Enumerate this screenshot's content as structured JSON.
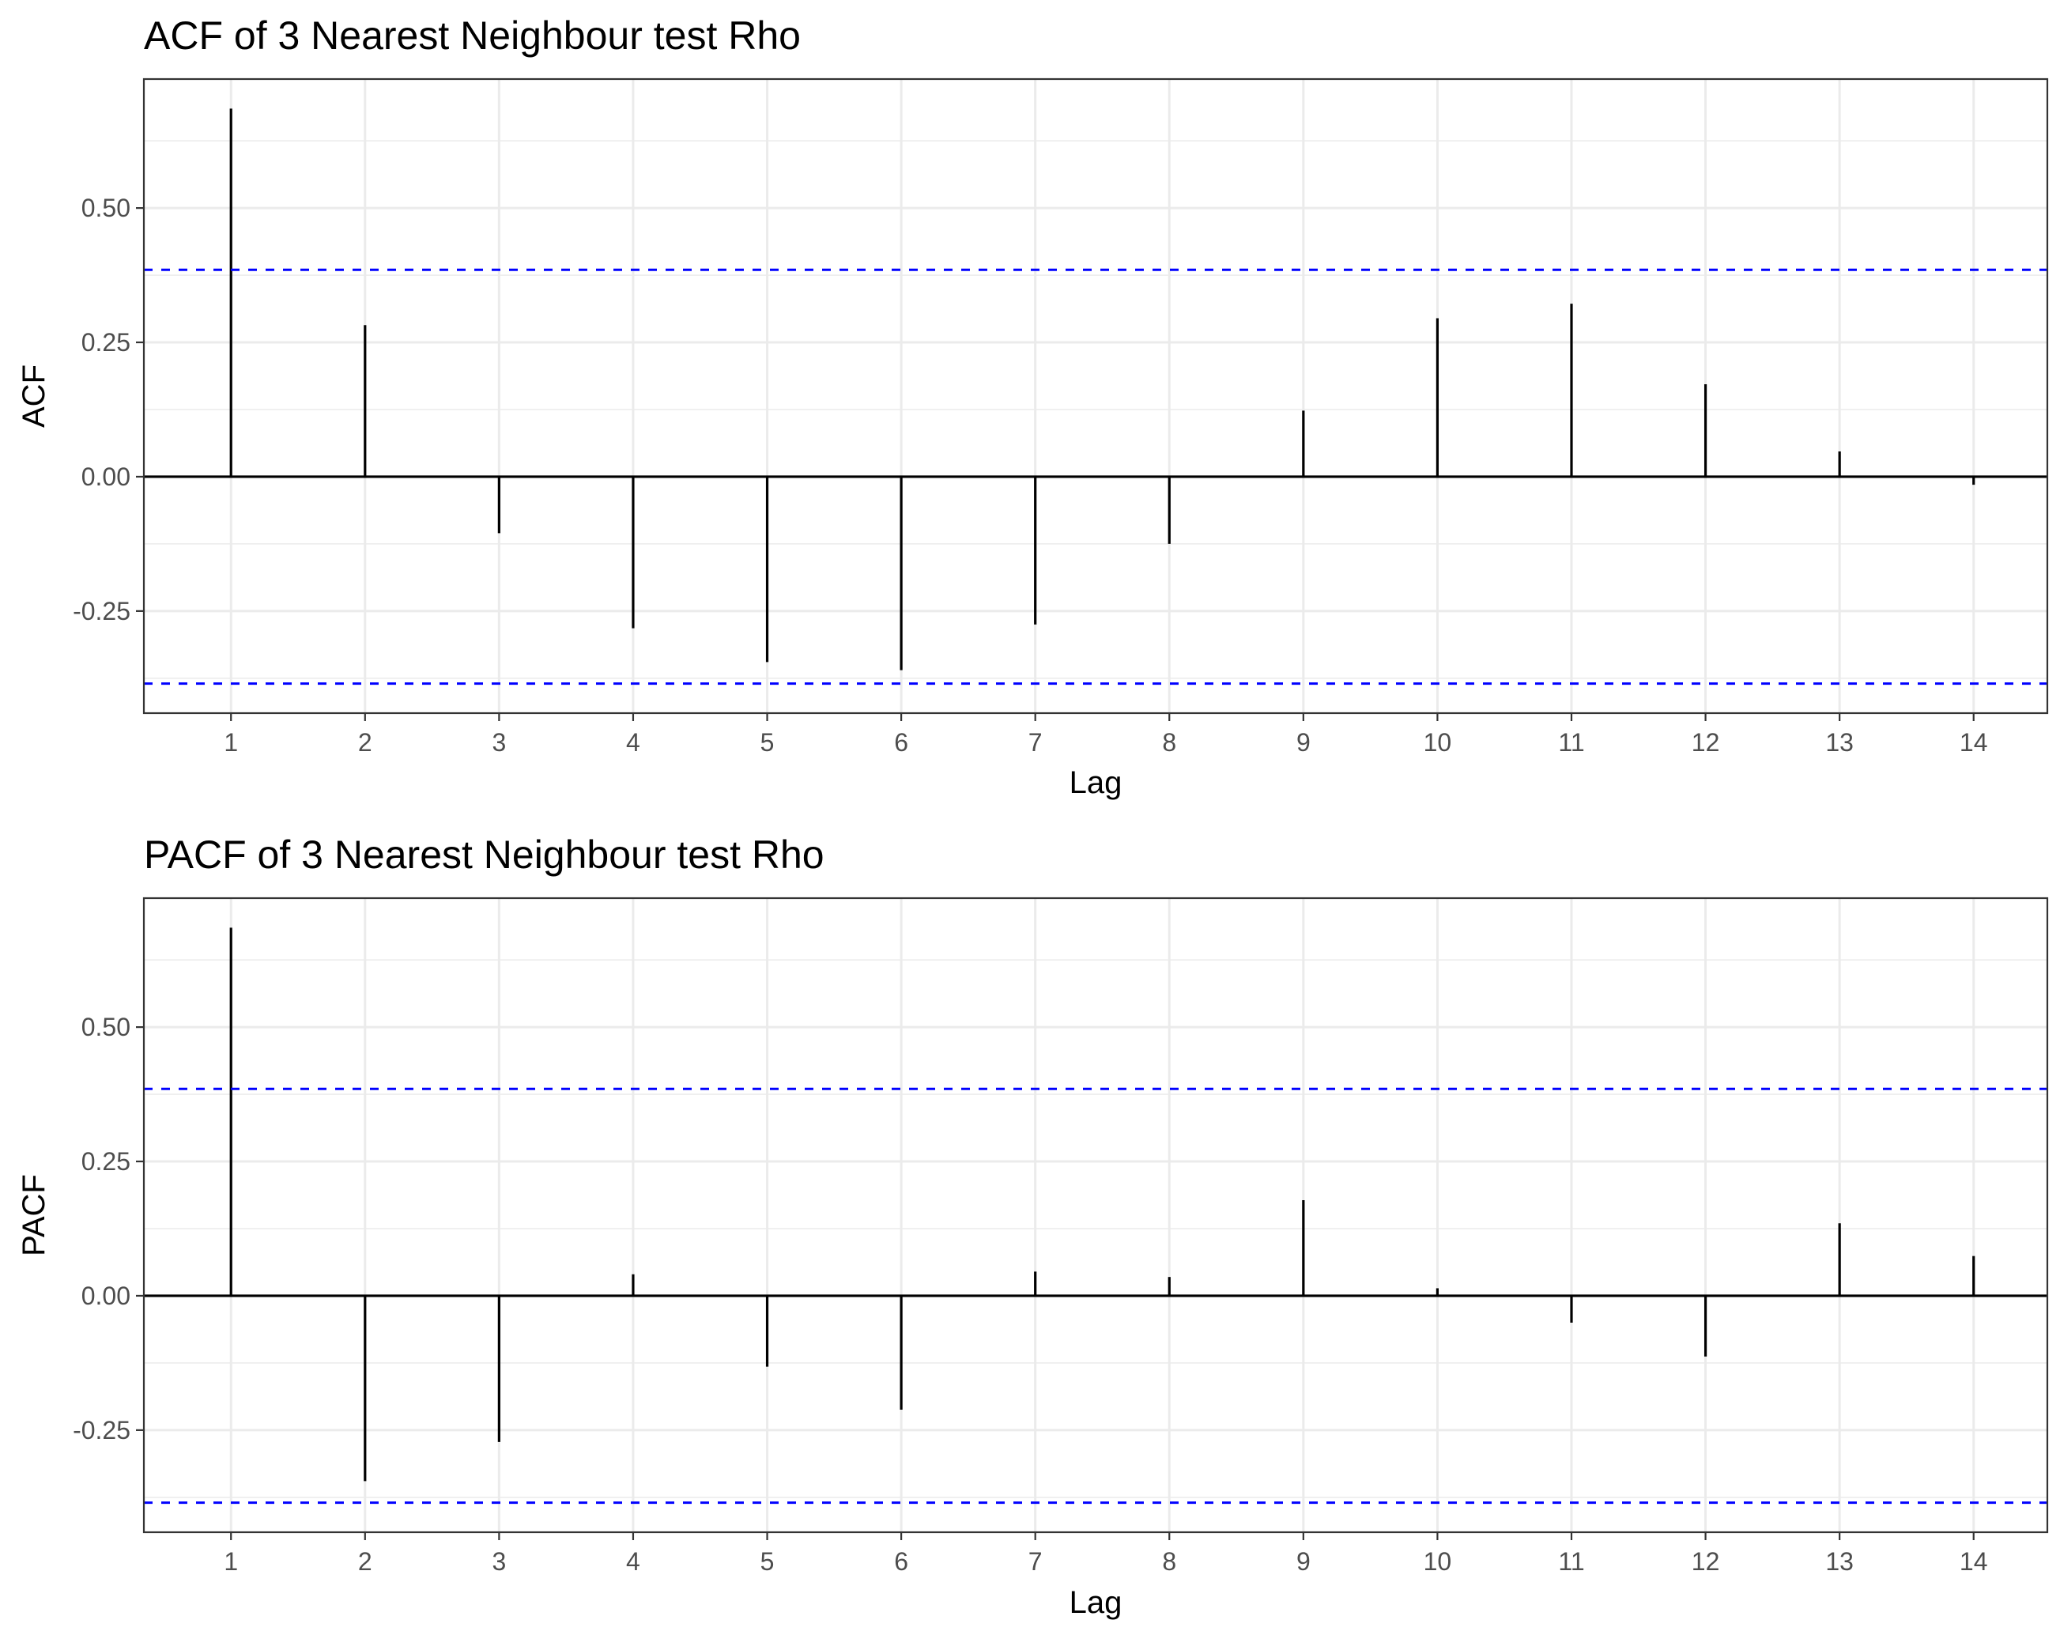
{
  "chart_data": [
    {
      "type": "bar",
      "title": "ACF of 3 Nearest Neighbour test Rho",
      "xlabel": "Lag",
      "ylabel": "ACF",
      "x": [
        1,
        2,
        3,
        4,
        5,
        6,
        7,
        8,
        9,
        10,
        11,
        12,
        13,
        14
      ],
      "values": [
        0.685,
        0.282,
        -0.105,
        -0.282,
        -0.345,
        -0.36,
        -0.275,
        -0.125,
        0.123,
        0.295,
        0.322,
        0.172,
        0.047,
        -0.015
      ],
      "confidence_bounds": [
        0.385,
        -0.385
      ],
      "xlim": [
        0.35,
        14.55
      ],
      "ylim": [
        -0.44,
        0.74
      ],
      "yticks": [
        -0.25,
        0,
        0.25,
        0.5
      ],
      "ytick_labels": [
        "-0.25",
        "0.00",
        "0.25",
        "0.50"
      ],
      "xticks": [
        1,
        2,
        3,
        4,
        5,
        6,
        7,
        8,
        9,
        10,
        11,
        12,
        13,
        14
      ],
      "xtick_labels": [
        "1",
        "2",
        "3",
        "4",
        "5",
        "6",
        "7",
        "8",
        "9",
        "10",
        "11",
        "12",
        "13",
        "14"
      ],
      "grid": true,
      "legend": "none",
      "colors": {
        "bars": "#000000",
        "confidence": "#0000ff"
      }
    },
    {
      "type": "bar",
      "title": "PACF of 3 Nearest Neighbour test Rho",
      "xlabel": "Lag",
      "ylabel": "PACF",
      "x": [
        1,
        2,
        3,
        4,
        5,
        6,
        7,
        8,
        9,
        10,
        11,
        12,
        13,
        14
      ],
      "values": [
        0.685,
        -0.345,
        -0.272,
        0.04,
        -0.132,
        -0.212,
        0.045,
        0.035,
        0.178,
        0.014,
        -0.05,
        -0.113,
        0.135,
        0.074
      ],
      "confidence_bounds": [
        0.385,
        -0.385
      ],
      "xlim": [
        0.35,
        14.55
      ],
      "ylim": [
        -0.44,
        0.74
      ],
      "yticks": [
        -0.25,
        0,
        0.25,
        0.5
      ],
      "ytick_labels": [
        "-0.25",
        "0.00",
        "0.25",
        "0.50"
      ],
      "xticks": [
        1,
        2,
        3,
        4,
        5,
        6,
        7,
        8,
        9,
        10,
        11,
        12,
        13,
        14
      ],
      "xtick_labels": [
        "1",
        "2",
        "3",
        "4",
        "5",
        "6",
        "7",
        "8",
        "9",
        "10",
        "11",
        "12",
        "13",
        "14"
      ],
      "grid": true,
      "legend": "none",
      "colors": {
        "bars": "#000000",
        "confidence": "#0000ff"
      }
    }
  ]
}
